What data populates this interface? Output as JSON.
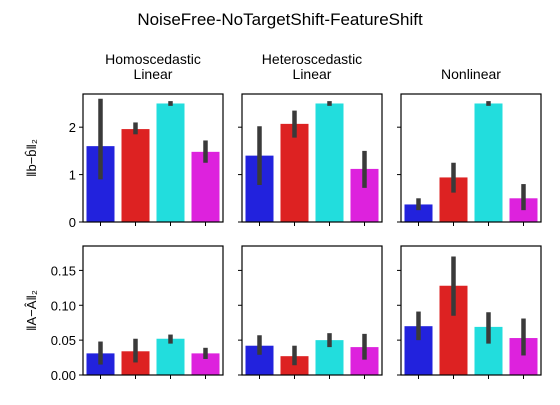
{
  "figure": {
    "title": "NoiseFree-NoTargetShift-FeatureShift"
  },
  "columns": [
    {
      "title_lines": [
        "Homoscedastic",
        "Linear"
      ]
    },
    {
      "title_lines": [
        "Heteroscedastic",
        "Linear"
      ]
    },
    {
      "title_lines": [
        "Nonlinear"
      ]
    }
  ],
  "rows": [
    {
      "ylabel": "‖b−b̂‖₂",
      "ylim": [
        0,
        2.7
      ],
      "yticks": [
        0,
        1,
        2
      ],
      "ytick_labels": [
        "0",
        "1",
        "2"
      ]
    },
    {
      "ylabel": "‖A−Â‖₂",
      "ylim": [
        0,
        0.185
      ],
      "yticks": [
        0.0,
        0.05,
        0.1,
        0.15
      ],
      "ytick_labels": [
        "0.00",
        "0.05",
        "0.10",
        "0.15"
      ]
    }
  ],
  "colors": {
    "bars": [
      "#2222dd",
      "#dd2222",
      "#22dddd",
      "#dd22dd"
    ],
    "error_bar": "#3a3a3a"
  },
  "chart_data": [
    {
      "type": "bar",
      "row": 0,
      "col": 0,
      "values": [
        1.6,
        1.96,
        2.5,
        1.48
      ],
      "errors": [
        [
          0.9,
          2.6
        ],
        [
          1.85,
          2.1
        ],
        [
          2.45,
          2.55
        ],
        [
          1.25,
          1.72
        ]
      ]
    },
    {
      "type": "bar",
      "row": 0,
      "col": 1,
      "values": [
        1.4,
        2.07,
        2.5,
        1.12
      ],
      "errors": [
        [
          0.78,
          2.02
        ],
        [
          1.78,
          2.35
        ],
        [
          2.45,
          2.55
        ],
        [
          0.72,
          1.5
        ]
      ]
    },
    {
      "type": "bar",
      "row": 0,
      "col": 2,
      "values": [
        0.37,
        0.94,
        2.5,
        0.5
      ],
      "errors": [
        [
          0.25,
          0.5
        ],
        [
          0.62,
          1.25
        ],
        [
          2.45,
          2.55
        ],
        [
          0.25,
          0.8
        ]
      ]
    },
    {
      "type": "bar",
      "row": 1,
      "col": 0,
      "values": [
        0.031,
        0.034,
        0.052,
        0.031
      ],
      "errors": [
        [
          0.015,
          0.048
        ],
        [
          0.018,
          0.052
        ],
        [
          0.045,
          0.058
        ],
        [
          0.023,
          0.039
        ]
      ]
    },
    {
      "type": "bar",
      "row": 1,
      "col": 1,
      "values": [
        0.042,
        0.027,
        0.05,
        0.04
      ],
      "errors": [
        [
          0.029,
          0.057
        ],
        [
          0.014,
          0.042
        ],
        [
          0.04,
          0.06
        ],
        [
          0.022,
          0.059
        ]
      ]
    },
    {
      "type": "bar",
      "row": 1,
      "col": 2,
      "values": [
        0.07,
        0.128,
        0.069,
        0.053
      ],
      "errors": [
        [
          0.05,
          0.091
        ],
        [
          0.085,
          0.17
        ],
        [
          0.045,
          0.09
        ],
        [
          0.028,
          0.081
        ]
      ]
    }
  ]
}
